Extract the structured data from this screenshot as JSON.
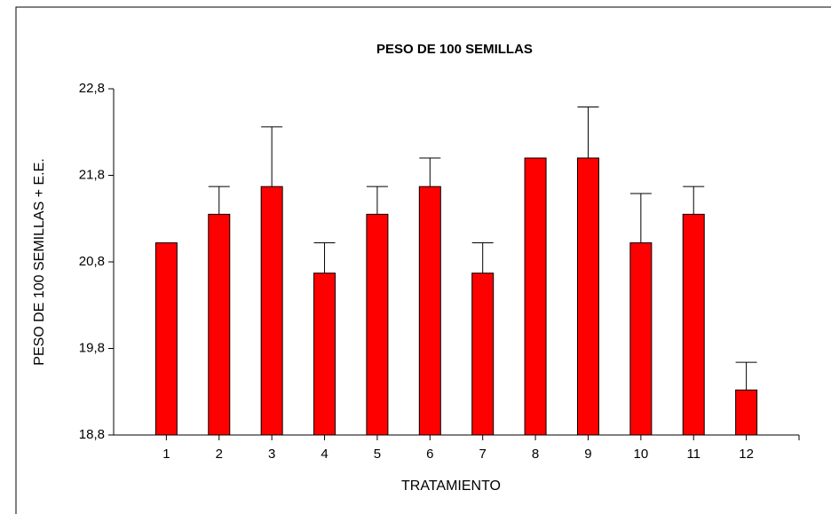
{
  "chart_data": {
    "type": "bar",
    "title": "PESO DE 100 SEMILLAS",
    "xlabel": "TRATAMIENTO",
    "ylabel": "PESO DE 100 SEMILLAS + E.E.",
    "categories": [
      "1",
      "2",
      "3",
      "4",
      "5",
      "6",
      "7",
      "8",
      "9",
      "10",
      "11",
      "12"
    ],
    "values": [
      21.02,
      21.35,
      21.67,
      20.67,
      21.35,
      21.67,
      20.67,
      22.0,
      22.0,
      21.02,
      21.35,
      19.32
    ],
    "errors": [
      0,
      0.32,
      0.69,
      0.35,
      0.32,
      0.33,
      0.35,
      0,
      0.59,
      0.57,
      0.32,
      0.32
    ],
    "color": "#ff0000",
    "ylim": [
      18.8,
      22.8
    ],
    "yticks": [
      {
        "value": 18.8,
        "label": "18,8"
      },
      {
        "value": 19.8,
        "label": "19,8"
      },
      {
        "value": 20.8,
        "label": "20,8"
      },
      {
        "value": 21.8,
        "label": "21,8"
      },
      {
        "value": 22.8,
        "label": "22,8"
      }
    ],
    "grid": false
  }
}
